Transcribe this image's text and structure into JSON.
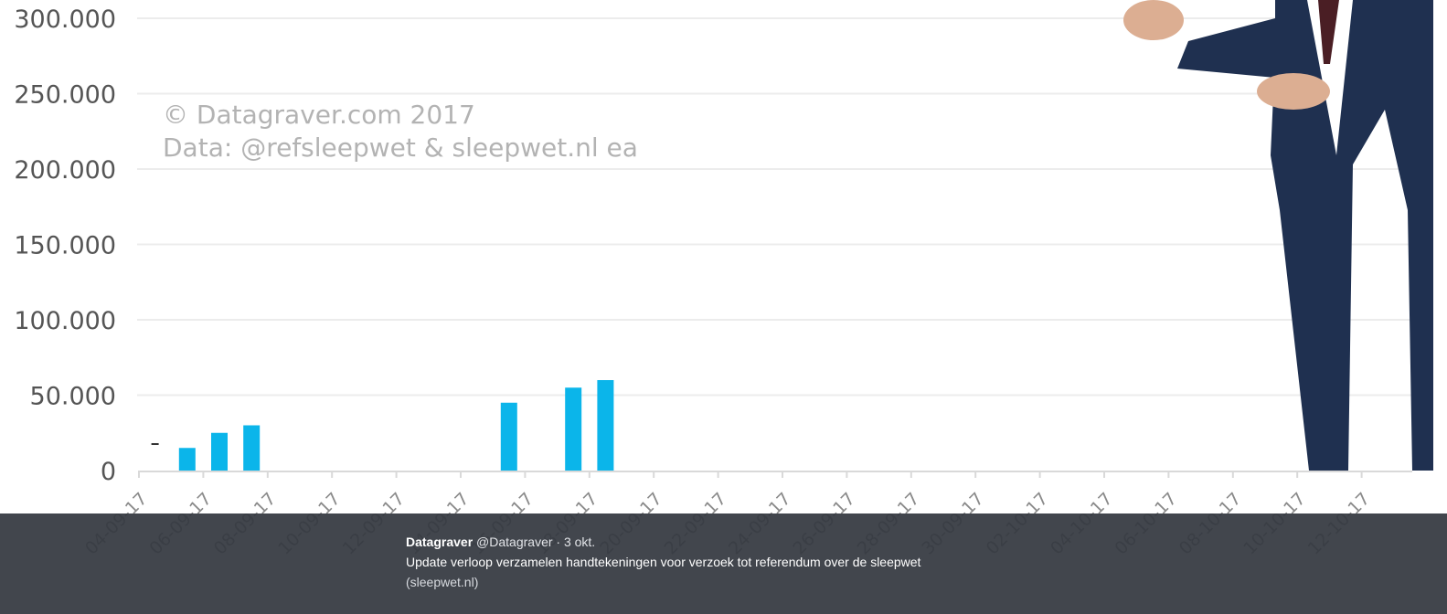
{
  "chart_data": {
    "type": "bar",
    "categories": [
      "04-09-17",
      "05-09-17",
      "06-09-17",
      "07-09-17",
      "08-09-17",
      "09-09-17",
      "10-09-17",
      "11-09-17",
      "12-09-17",
      "13-09-17",
      "14-09-17",
      "15-09-17",
      "16-09-17",
      "17-09-17",
      "18-09-17",
      "19-09-17",
      "20-09-17",
      "21-09-17",
      "22-09-17",
      "23-09-17",
      "24-09-17",
      "25-09-17",
      "26-09-17",
      "27-09-17",
      "28-09-17",
      "29-09-17",
      "30-09-17",
      "01-10-17",
      "02-10-17",
      "03-10-17",
      "04-10-17",
      "05-10-17",
      "06-10-17",
      "07-10-17",
      "08-10-17",
      "09-10-17",
      "10-10-17",
      "11-10-17",
      "12-10-17",
      "13-10-17"
    ],
    "values": [
      0,
      15000,
      25000,
      30000,
      null,
      null,
      null,
      null,
      null,
      null,
      null,
      45000,
      null,
      55000,
      60000,
      null,
      null,
      null,
      null,
      null,
      null,
      null,
      null,
      null,
      null,
      null,
      null,
      null,
      null,
      null,
      null,
      null,
      null,
      null,
      null,
      null,
      null,
      null,
      null,
      null
    ],
    "x_tick_labels": [
      "04-09-17",
      "06-09-17",
      "08-09-17",
      "10-09-17",
      "12-09-17",
      "14-09-17",
      "16-09-17",
      "18-09-17",
      "20-09-17",
      "22-09-17",
      "24-09-17",
      "26-09-17",
      "28-09-17",
      "30-09-17",
      "02-10-17",
      "04-10-17",
      "06-10-17",
      "08-10-17",
      "10-10-17",
      "12-10-17"
    ],
    "y_tick_labels": [
      "0",
      "50.000",
      "100.000",
      "150.000",
      "200.000",
      "250.000",
      "300.000"
    ],
    "ylim": [
      0,
      300000
    ],
    "bar_color": "#0bb5ea",
    "grid": true,
    "xlabel": "",
    "ylabel": "",
    "title": ""
  },
  "watermark": {
    "line1": "© Datagraver.com 2017",
    "line2": "Data: @refsleepwet & sleepwet.nl ea"
  },
  "tweet": {
    "author": "Datagraver",
    "meta": "@Datagraver · 3 okt.",
    "text": "Update verloop verzamelen handtekeningen voor verzoek tot referendum over de sleepwet",
    "link": "(sleepwet.nl)"
  },
  "colors": {
    "bar": "#0bb5ea",
    "grid": "#ececec",
    "tweet_bar": "#34383f",
    "suit": "#1f3050"
  },
  "presenter_image": "man-in-navy-suit-presenting"
}
